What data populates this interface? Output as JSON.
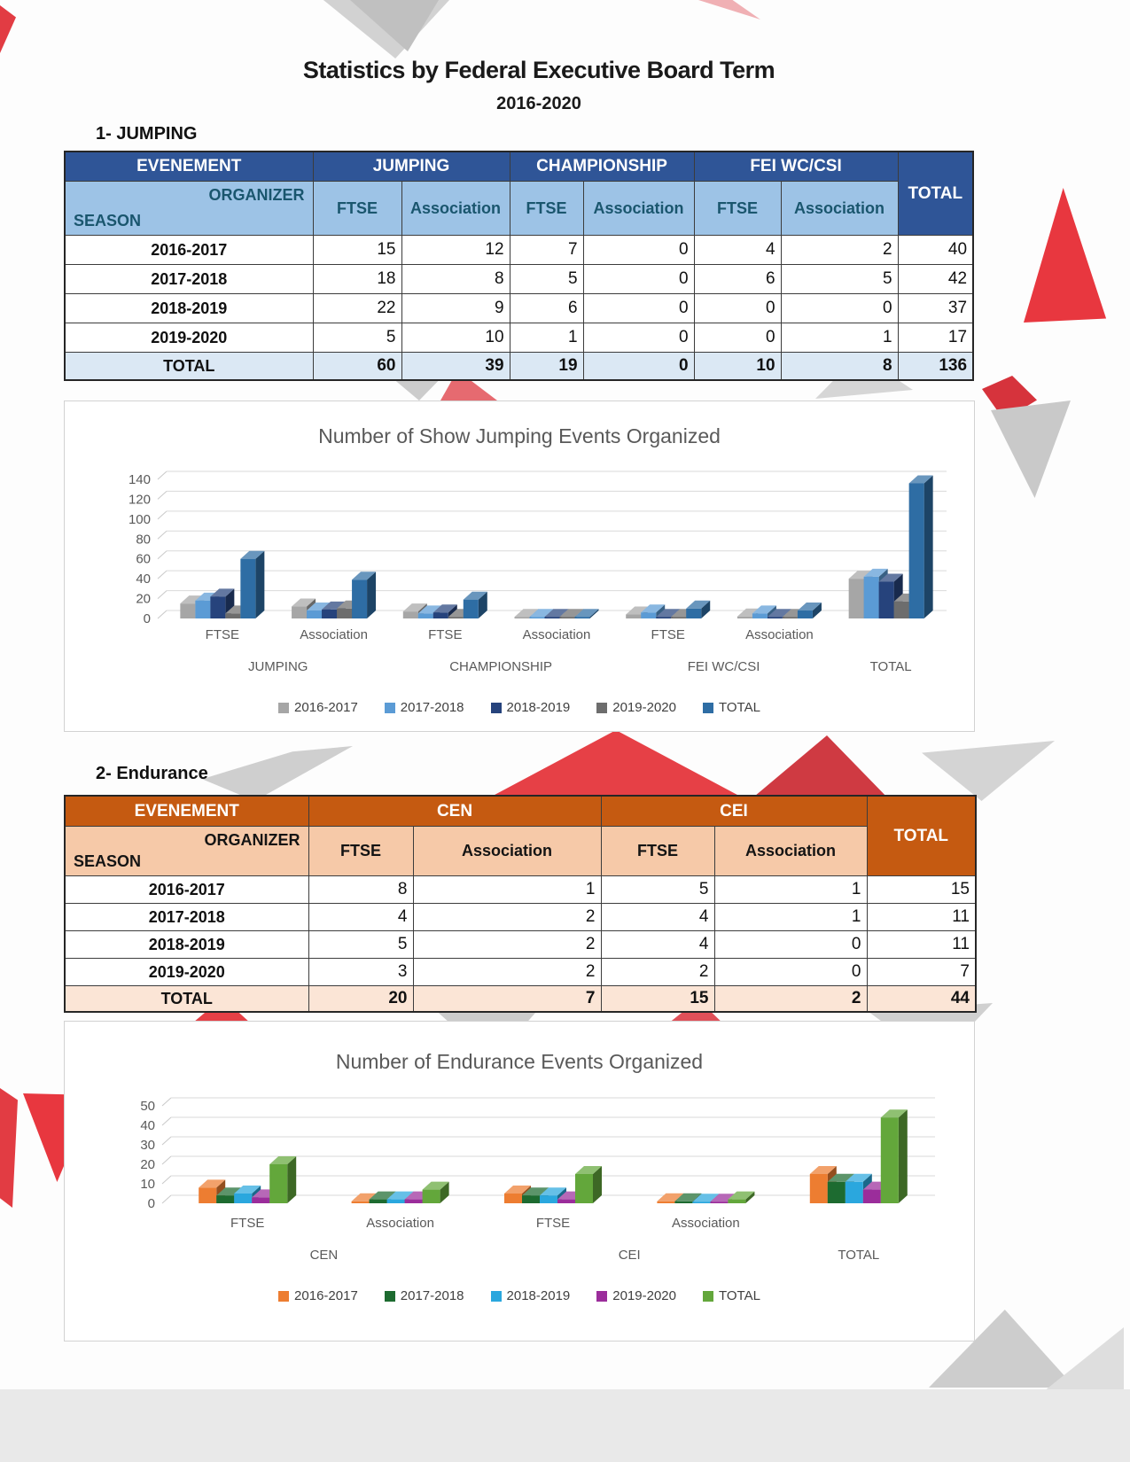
{
  "page": {
    "title": "Statistics by Federal Executive Board Term",
    "subtitle": "2016-2020",
    "section1": "1-  JUMPING",
    "section2": "2-  Endurance"
  },
  "jumping_table": {
    "evenement_label": "EVENEMENT",
    "organizer_label": "ORGANIZER",
    "season_label": "SEASON",
    "groups": [
      "JUMPING",
      "CHAMPIONSHIP",
      "FEI WC/CSI"
    ],
    "subheaders": [
      "FTSE",
      "Association",
      "FTSE",
      "Association",
      "FTSE",
      "Association"
    ],
    "total_header": "TOTAL",
    "rows": [
      {
        "season": "2016-2017",
        "values": [
          15,
          12,
          7,
          0,
          4,
          2
        ],
        "total": 40
      },
      {
        "season": "2017-2018",
        "values": [
          18,
          8,
          5,
          0,
          6,
          5
        ],
        "total": 42
      },
      {
        "season": "2018-2019",
        "values": [
          22,
          9,
          6,
          0,
          0,
          0
        ],
        "total": 37
      },
      {
        "season": "2019-2020",
        "values": [
          5,
          10,
          1,
          0,
          0,
          1
        ],
        "total": 17
      }
    ],
    "total_row": {
      "label": "TOTAL",
      "values": [
        60,
        39,
        19,
        0,
        10,
        8
      ],
      "total": 136
    }
  },
  "endurance_table": {
    "evenement_label": "EVENEMENT",
    "organizer_label": "ORGANIZER",
    "season_label": "SEASON",
    "groups": [
      "CEN",
      "CEI"
    ],
    "subheaders": [
      "FTSE",
      "Association",
      "FTSE",
      "Association"
    ],
    "total_header": "TOTAL",
    "rows": [
      {
        "season": "2016-2017",
        "values": [
          8,
          1,
          5,
          1
        ],
        "total": 15
      },
      {
        "season": "2017-2018",
        "values": [
          4,
          2,
          4,
          1
        ],
        "total": 11
      },
      {
        "season": "2018-2019",
        "values": [
          5,
          2,
          4,
          0
        ],
        "total": 11
      },
      {
        "season": "2019-2020",
        "values": [
          3,
          2,
          2,
          0
        ],
        "total": 7
      }
    ],
    "total_row": {
      "label": "TOTAL",
      "values": [
        20,
        7,
        15,
        2
      ],
      "total": 44
    }
  },
  "chart_data": [
    {
      "type": "bar",
      "effect": "3d",
      "title": "Number of Show Jumping Events Organized",
      "categories": [
        {
          "label": "FTSE",
          "group": "JUMPING"
        },
        {
          "label": "Association",
          "group": "JUMPING"
        },
        {
          "label": "FTSE",
          "group": "CHAMPIONSHIP"
        },
        {
          "label": "Association",
          "group": "CHAMPIONSHIP"
        },
        {
          "label": "FTSE",
          "group": "FEI WC/CSI"
        },
        {
          "label": "Association",
          "group": "FEI WC/CSI"
        },
        {
          "label": "",
          "group": "TOTAL"
        }
      ],
      "series": [
        {
          "name": "2016-2017",
          "color": "#a6a6a6",
          "values": [
            15,
            12,
            7,
            0,
            4,
            2,
            40
          ]
        },
        {
          "name": "2017-2018",
          "color": "#5b9bd5",
          "values": [
            18,
            8,
            5,
            0,
            6,
            5,
            42
          ]
        },
        {
          "name": "2018-2019",
          "color": "#26437c",
          "values": [
            22,
            9,
            6,
            0,
            0,
            0,
            37
          ]
        },
        {
          "name": "2019-2020",
          "color": "#6d6d6d",
          "values": [
            5,
            10,
            1,
            0,
            0,
            1,
            17
          ]
        },
        {
          "name": "TOTAL",
          "color": "#2e6da4",
          "values": [
            60,
            39,
            19,
            0,
            10,
            8,
            136
          ]
        }
      ],
      "ylim": [
        0,
        140
      ],
      "ytick": 20,
      "grid": true,
      "legend_position": "bottom"
    },
    {
      "type": "bar",
      "effect": "3d",
      "title": "Number of Endurance Events Organized",
      "categories": [
        {
          "label": "FTSE",
          "group": "CEN"
        },
        {
          "label": "Association",
          "group": "CEN"
        },
        {
          "label": "FTSE",
          "group": "CEI"
        },
        {
          "label": "Association",
          "group": "CEI"
        },
        {
          "label": "",
          "group": "TOTAL"
        }
      ],
      "series": [
        {
          "name": "2016-2017",
          "color": "#ed7d31",
          "values": [
            8,
            1,
            5,
            1,
            15
          ]
        },
        {
          "name": "2017-2018",
          "color": "#1d6b30",
          "values": [
            4,
            2,
            4,
            1,
            11
          ]
        },
        {
          "name": "2018-2019",
          "color": "#2aa7de",
          "values": [
            5,
            2,
            4,
            0,
            11
          ]
        },
        {
          "name": "2019-2020",
          "color": "#9b2d9b",
          "values": [
            3,
            2,
            2,
            0,
            7
          ]
        },
        {
          "name": "TOTAL",
          "color": "#63a73b",
          "values": [
            20,
            7,
            15,
            2,
            44
          ]
        }
      ],
      "ylim": [
        0,
        50
      ],
      "ytick": 10,
      "grid": true,
      "legend_position": "bottom"
    }
  ]
}
